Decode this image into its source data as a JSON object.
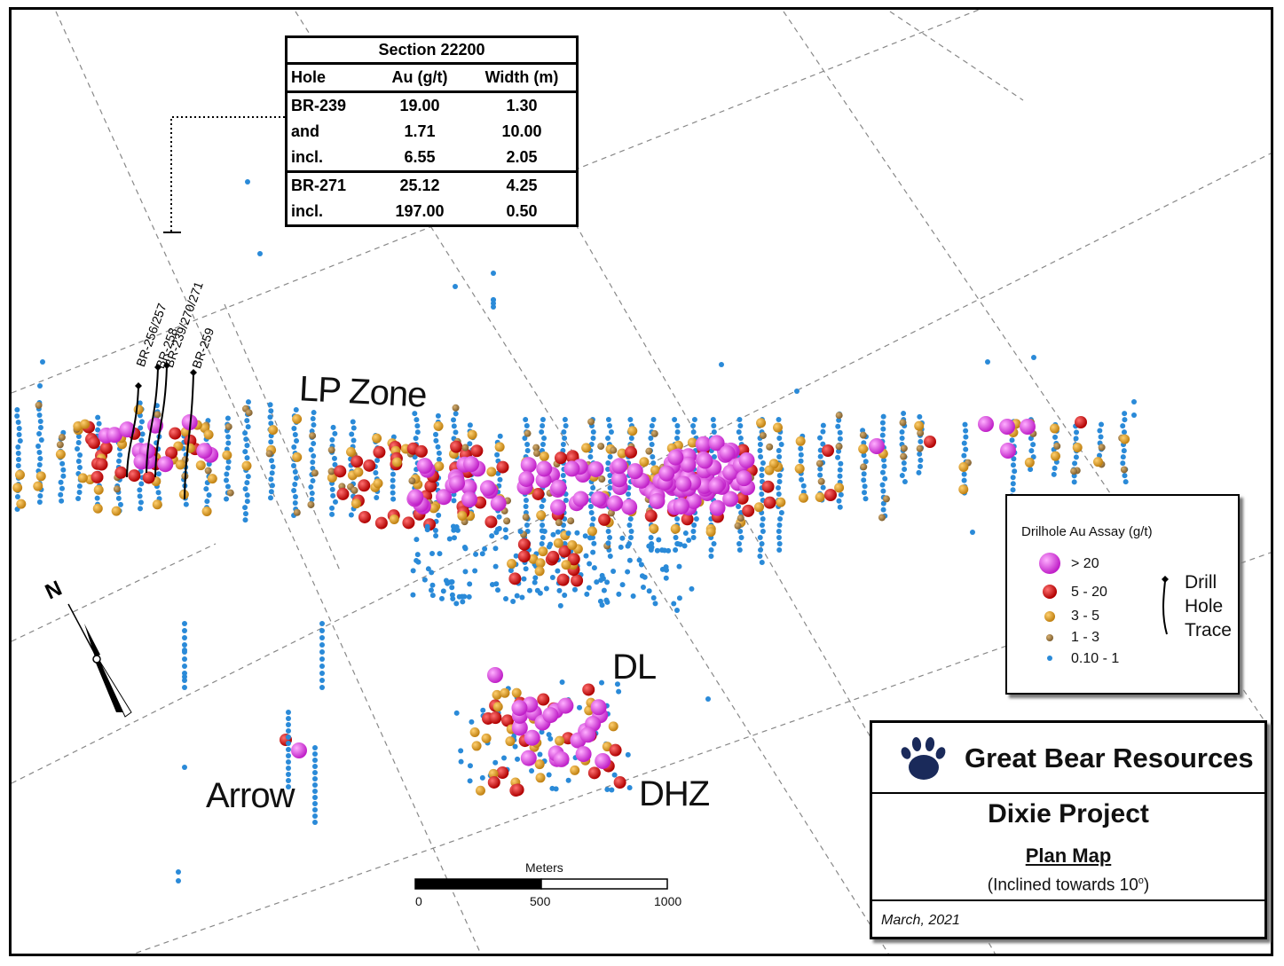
{
  "map": {
    "zones": [
      "LP Zone",
      "DL",
      "DHZ",
      "Arrow"
    ],
    "drill_holes": [
      "BR-256/257",
      "BR-258",
      "BR-239/270/271",
      "BR-259"
    ],
    "north_label": "N",
    "colors": {
      "gt20": "#e83de8",
      "5to20": "#e01010",
      "3to5": "#e0a020",
      "1to3": "#b08840",
      "low": "#2a8ad8",
      "grid": "#888888"
    }
  },
  "section_table": {
    "title": "Section 22200",
    "headers": [
      "Hole",
      "Au (g/t)",
      "Width (m)"
    ],
    "rows": [
      [
        "BR-239",
        "19.00",
        "1.30"
      ],
      [
        "and",
        "1.71",
        "10.00"
      ],
      [
        "incl.",
        "6.55",
        "2.05"
      ],
      [
        "BR-271",
        "25.12",
        "4.25"
      ],
      [
        "incl.",
        "197.00",
        "0.50"
      ]
    ]
  },
  "legend": {
    "title": "Drilhole Au Assay (g/t)",
    "items": [
      "> 20",
      "5 - 20",
      "3 - 5",
      "1 - 3",
      "0.10 - 1"
    ],
    "trace_label": [
      "Drill",
      "Hole",
      "Trace"
    ]
  },
  "title_block": {
    "company": "Great Bear Resources",
    "project": "Dixie Project",
    "subtitle": "Plan Map",
    "incline": "(Inclined towards 10",
    "incline_sup": "o",
    "incline_end": ")",
    "date": "March, 2021"
  },
  "scale_bar": {
    "title": "Meters",
    "ticks": [
      "0",
      "500",
      "1000"
    ]
  }
}
